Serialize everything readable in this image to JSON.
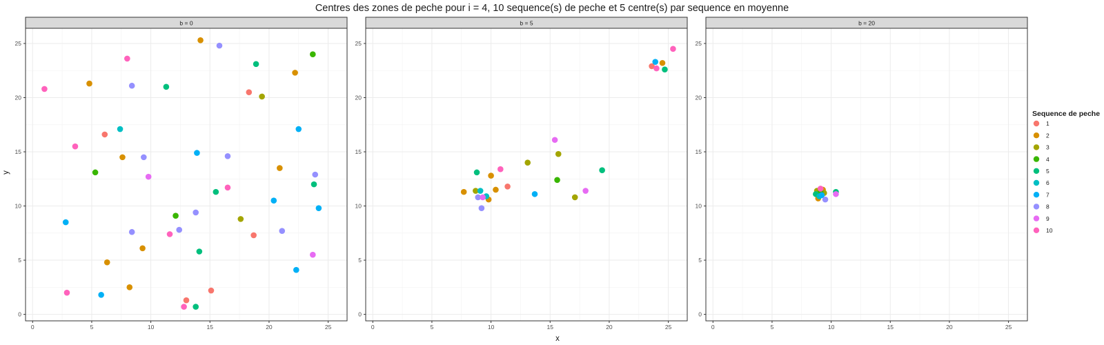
{
  "chart_data": {
    "type": "scatter",
    "title": "Centres des zones de peche pour i = 4, 10 sequence(s) de peche et 5 centre(s) par sequence en moyenne",
    "xlabel": "x",
    "ylabel": "y",
    "xlim": [
      -0.6,
      26.6
    ],
    "ylim": [
      -0.6,
      26.4
    ],
    "x_ticks": [
      0,
      5,
      10,
      15,
      20,
      25
    ],
    "y_ticks": [
      0,
      5,
      10,
      15,
      20,
      25
    ],
    "grid": true,
    "legend": {
      "title": "Sequence de peche",
      "position": "right",
      "entries": [
        "1",
        "2",
        "3",
        "4",
        "5",
        "6",
        "7",
        "8",
        "9",
        "10"
      ]
    },
    "colors": {
      "1": "#F8766D",
      "2": "#D89000",
      "3": "#A3A500",
      "4": "#39B600",
      "5": "#00BF7D",
      "6": "#00BFC4",
      "7": "#00B0F6",
      "8": "#9590FF",
      "9": "#E76BF3",
      "10": "#FF62BC"
    },
    "panels": [
      {
        "strip": "b = 0",
        "series": [
          {
            "name": "1",
            "points": [
              [
                6.1,
                16.6
              ],
              [
                18.3,
                20.5
              ],
              [
                18.7,
                7.3
              ],
              [
                13.0,
                1.3
              ],
              [
                15.1,
                2.2
              ]
            ]
          },
          {
            "name": "2",
            "points": [
              [
                4.8,
                21.3
              ],
              [
                14.2,
                25.3
              ],
              [
                22.2,
                22.3
              ],
              [
                7.6,
                14.5
              ],
              [
                20.9,
                13.5
              ],
              [
                9.3,
                6.1
              ],
              [
                6.3,
                4.8
              ],
              [
                8.2,
                2.5
              ]
            ]
          },
          {
            "name": "3",
            "points": [
              [
                19.4,
                20.1
              ],
              [
                17.6,
                8.8
              ]
            ]
          },
          {
            "name": "4",
            "points": [
              [
                5.3,
                13.1
              ],
              [
                12.1,
                9.1
              ],
              [
                23.7,
                24.0
              ]
            ]
          },
          {
            "name": "5",
            "points": [
              [
                11.3,
                21.0
              ],
              [
                18.9,
                23.1
              ],
              [
                15.5,
                11.3
              ],
              [
                23.8,
                12.0
              ],
              [
                14.1,
                5.8
              ],
              [
                13.8,
                0.7
              ]
            ]
          },
          {
            "name": "6",
            "points": [
              [
                7.4,
                17.1
              ]
            ]
          },
          {
            "name": "7",
            "points": [
              [
                22.5,
                17.1
              ],
              [
                13.9,
                14.9
              ],
              [
                2.8,
                8.5
              ],
              [
                20.4,
                10.5
              ],
              [
                24.2,
                9.8
              ],
              [
                22.3,
                4.1
              ],
              [
                5.8,
                1.8
              ]
            ]
          },
          {
            "name": "8",
            "points": [
              [
                8.4,
                21.1
              ],
              [
                15.8,
                24.8
              ],
              [
                9.4,
                14.5
              ],
              [
                16.5,
                14.6
              ],
              [
                23.9,
                12.9
              ],
              [
                13.8,
                9.4
              ],
              [
                8.4,
                7.6
              ],
              [
                12.4,
                7.8
              ],
              [
                21.1,
                7.7
              ]
            ]
          },
          {
            "name": "9",
            "points": [
              [
                9.8,
                12.7
              ],
              [
                23.7,
                5.5
              ]
            ]
          },
          {
            "name": "10",
            "points": [
              [
                1.0,
                20.8
              ],
              [
                8.0,
                23.6
              ],
              [
                3.6,
                15.5
              ],
              [
                16.5,
                11.7
              ],
              [
                11.6,
                7.4
              ],
              [
                2.9,
                2.0
              ],
              [
                12.8,
                0.7
              ]
            ]
          }
        ]
      },
      {
        "strip": "b = 5",
        "series": [
          {
            "name": "1",
            "points": [
              [
                11.4,
                11.8
              ],
              [
                23.6,
                22.9
              ]
            ]
          },
          {
            "name": "2",
            "points": [
              [
                7.7,
                11.3
              ],
              [
                10.0,
                12.8
              ],
              [
                10.4,
                11.5
              ],
              [
                9.8,
                10.6
              ],
              [
                24.5,
                23.2
              ]
            ]
          },
          {
            "name": "3",
            "points": [
              [
                8.7,
                11.4
              ],
              [
                13.1,
                14.0
              ],
              [
                15.7,
                14.8
              ],
              [
                17.1,
                10.8
              ]
            ]
          },
          {
            "name": "4",
            "points": [
              [
                15.6,
                12.4
              ]
            ]
          },
          {
            "name": "5",
            "points": [
              [
                8.8,
                13.1
              ],
              [
                19.4,
                13.3
              ],
              [
                24.7,
                22.6
              ]
            ]
          },
          {
            "name": "6",
            "points": [
              [
                9.1,
                11.4
              ],
              [
                9.6,
                10.9
              ]
            ]
          },
          {
            "name": "7",
            "points": [
              [
                13.7,
                11.1
              ],
              [
                23.9,
                23.3
              ]
            ]
          },
          {
            "name": "8",
            "points": [
              [
                9.2,
                9.8
              ],
              [
                8.9,
                10.8
              ]
            ]
          },
          {
            "name": "9",
            "points": [
              [
                15.4,
                16.1
              ],
              [
                18.0,
                11.4
              ],
              [
                9.3,
                10.8
              ]
            ]
          },
          {
            "name": "10",
            "points": [
              [
                10.8,
                13.4
              ],
              [
                24.0,
                22.7
              ],
              [
                25.4,
                24.5
              ]
            ]
          }
        ]
      },
      {
        "strip": "b = 20",
        "series": [
          {
            "name": "1",
            "points": [
              [
                9.0,
                11.1
              ]
            ]
          },
          {
            "name": "2",
            "points": [
              [
                8.9,
                10.7
              ],
              [
                9.3,
                11.5
              ]
            ]
          },
          {
            "name": "3",
            "points": [
              [
                8.8,
                11.4
              ],
              [
                9.4,
                11.2
              ]
            ]
          },
          {
            "name": "4",
            "points": [
              [
                9.1,
                11.3
              ]
            ]
          },
          {
            "name": "5",
            "points": [
              [
                10.4,
                11.3
              ],
              [
                8.7,
                11.1
              ]
            ]
          },
          {
            "name": "6",
            "points": [
              [
                9.0,
                10.9
              ]
            ]
          },
          {
            "name": "7",
            "points": [
              [
                9.2,
                11.0
              ]
            ]
          },
          {
            "name": "8",
            "points": [
              [
                9.5,
                10.6
              ]
            ]
          },
          {
            "name": "9",
            "points": [
              [
                10.4,
                11.1
              ]
            ]
          },
          {
            "name": "10",
            "points": [
              [
                9.1,
                11.6
              ]
            ]
          }
        ]
      }
    ]
  }
}
